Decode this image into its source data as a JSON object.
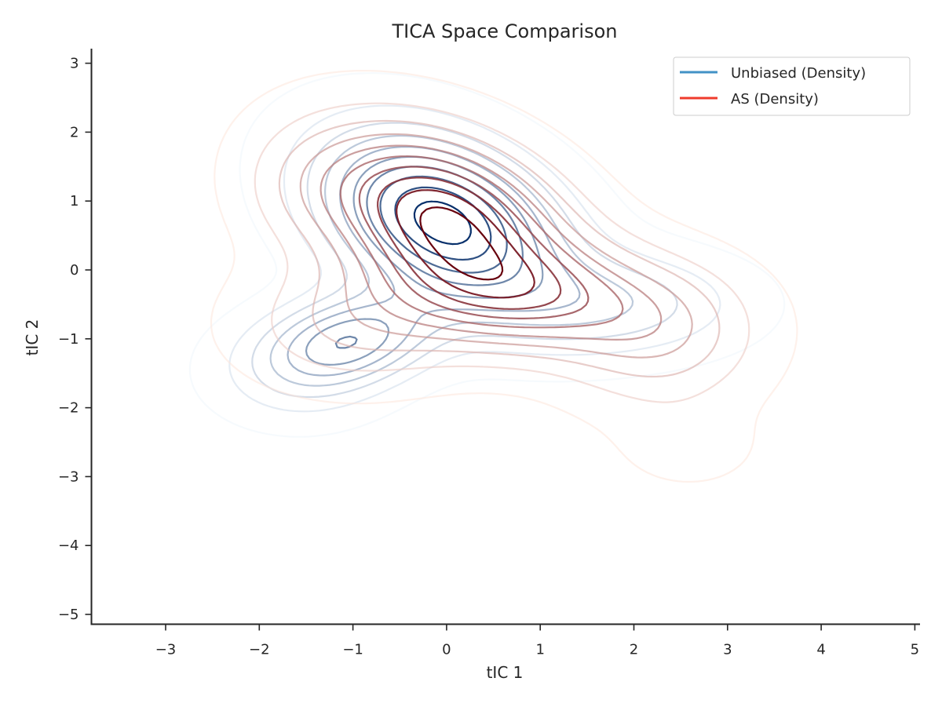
{
  "chart_data": {
    "type": "contour",
    "title": "TICA Space Comparison",
    "xlabel": "tIC 1",
    "ylabel": "tIC 2",
    "xlim": [
      -3.8,
      5.05
    ],
    "ylim": [
      -5.15,
      3.22
    ],
    "xticks": [
      -3,
      -2,
      -1,
      0,
      1,
      2,
      3,
      4,
      5
    ],
    "yticks": [
      -5,
      -4,
      -3,
      -2,
      -1,
      0,
      1,
      2,
      3
    ],
    "xtick_labels": [
      "−3",
      "−2",
      "−1",
      "0",
      "1",
      "2",
      "3",
      "4",
      "5"
    ],
    "ytick_labels": [
      "−5",
      "−4",
      "−3",
      "−2",
      "−1",
      "0",
      "1",
      "2",
      "3"
    ],
    "grid": false,
    "legend_position": "top-right",
    "series": [
      {
        "name": "Unbiased (Density)",
        "color": "#4292c6",
        "colormap": "Blues",
        "peak_colors": [
          "#eef5fc",
          "#08306b"
        ],
        "levels": 10,
        "components": [
          {
            "mx": -0.05,
            "my": 0.7,
            "sx": 0.85,
            "sy": 0.85,
            "rho": -0.35,
            "w": 1.0
          },
          {
            "mx": -1.0,
            "my": -1.0,
            "sx": 0.6,
            "sy": 0.45,
            "rho": 0.2,
            "w": 0.55
          },
          {
            "mx": 1.8,
            "my": -0.5,
            "sx": 0.9,
            "sy": 0.5,
            "rho": 0.0,
            "w": 0.3
          },
          {
            "mx": -1.6,
            "my": -1.5,
            "sx": 0.6,
            "sy": 0.5,
            "rho": 0.0,
            "w": 0.2
          }
        ]
      },
      {
        "name": "AS (Density)",
        "color": "#ef3b2c",
        "colormap": "Reds",
        "peak_colors": [
          "#fde5db",
          "#67000d"
        ],
        "levels": 10,
        "components": [
          {
            "mx": -0.05,
            "my": 0.75,
            "sx": 0.9,
            "sy": 0.85,
            "rho": -0.35,
            "w": 1.0
          },
          {
            "mx": 0.9,
            "my": -0.4,
            "sx": 1.0,
            "sy": 0.55,
            "rho": -0.1,
            "w": 0.5
          },
          {
            "mx": 2.3,
            "my": -1.0,
            "sx": 0.7,
            "sy": 0.7,
            "rho": 0.0,
            "w": 0.3
          },
          {
            "mx": -1.0,
            "my": -0.8,
            "sx": 0.8,
            "sy": 0.6,
            "rho": 0.0,
            "w": 0.25
          },
          {
            "mx": 2.6,
            "my": -2.6,
            "sx": 0.5,
            "sy": 0.4,
            "rho": 0.0,
            "w": 0.08
          },
          {
            "mx": -1.5,
            "my": 1.2,
            "sx": 0.5,
            "sy": 0.6,
            "rho": 0.0,
            "w": 0.12
          }
        ]
      }
    ]
  }
}
